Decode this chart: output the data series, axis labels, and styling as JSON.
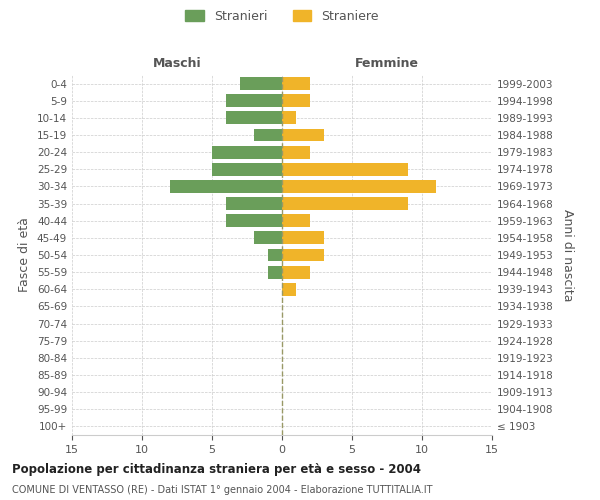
{
  "age_groups": [
    "100+",
    "95-99",
    "90-94",
    "85-89",
    "80-84",
    "75-79",
    "70-74",
    "65-69",
    "60-64",
    "55-59",
    "50-54",
    "45-49",
    "40-44",
    "35-39",
    "30-34",
    "25-29",
    "20-24",
    "15-19",
    "10-14",
    "5-9",
    "0-4"
  ],
  "birth_years": [
    "≤ 1903",
    "1904-1908",
    "1909-1913",
    "1914-1918",
    "1919-1923",
    "1924-1928",
    "1929-1933",
    "1934-1938",
    "1939-1943",
    "1944-1948",
    "1949-1953",
    "1954-1958",
    "1959-1963",
    "1964-1968",
    "1969-1973",
    "1974-1978",
    "1979-1983",
    "1984-1988",
    "1989-1993",
    "1994-1998",
    "1999-2003"
  ],
  "males": [
    0,
    0,
    0,
    0,
    0,
    0,
    0,
    0,
    0,
    1,
    1,
    2,
    4,
    4,
    8,
    5,
    5,
    2,
    4,
    4,
    3
  ],
  "females": [
    0,
    0,
    0,
    0,
    0,
    0,
    0,
    0,
    1,
    2,
    3,
    3,
    2,
    9,
    11,
    9,
    2,
    3,
    1,
    2,
    2
  ],
  "male_color": "#6a9e5a",
  "female_color": "#f0b429",
  "title": "Popolazione per cittadinanza straniera per età e sesso - 2004",
  "subtitle": "COMUNE DI VENTASSO (RE) - Dati ISTAT 1° gennaio 2004 - Elaborazione TUTTITALIA.IT",
  "xlabel_left": "Maschi",
  "xlabel_right": "Femmine",
  "ylabel_left": "Fasce di età",
  "ylabel_right": "Anni di nascita",
  "legend_male": "Stranieri",
  "legend_female": "Straniere",
  "xlim": 15,
  "background_color": "#ffffff",
  "grid_color": "#cccccc",
  "bar_edge_color": "none",
  "centerline_color": "#999966",
  "text_color": "#555555"
}
